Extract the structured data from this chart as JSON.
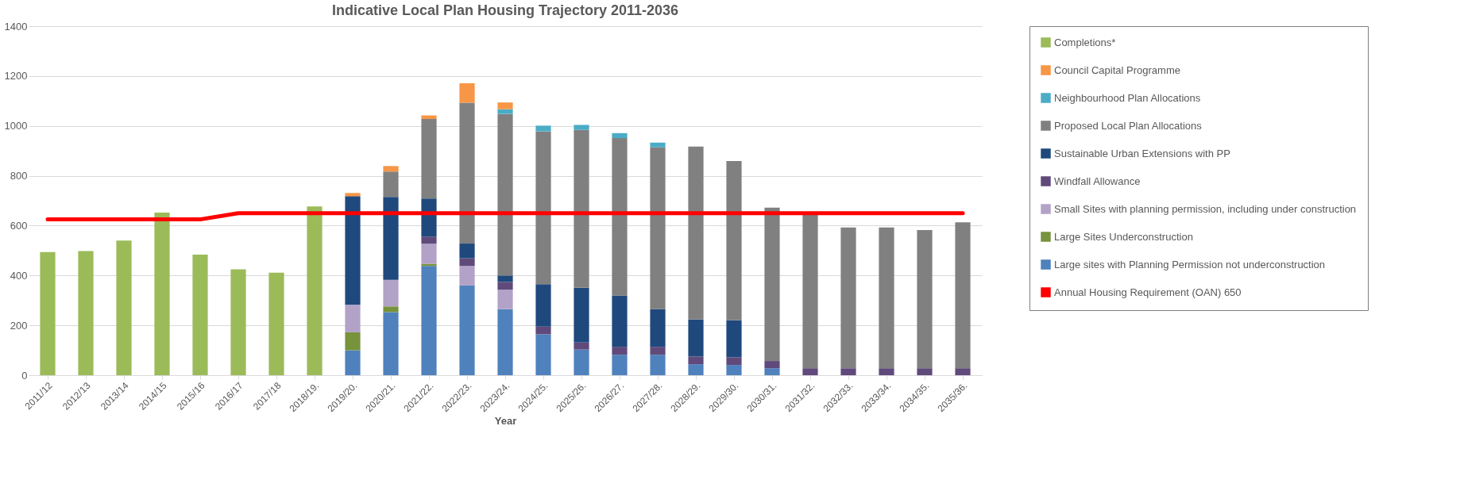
{
  "chart_data": {
    "type": "bar",
    "title": "Indicative Local Plan Housing Trajectory 2011-2036",
    "xlabel": "Year",
    "stacked": true,
    "categories": [
      "2011/12",
      "2012/13",
      "2013/14",
      "2014/15",
      "2015/16",
      "2016/17",
      "2017/18",
      "2018/19.",
      "2019/20.",
      "2020/21.",
      "2021/22.",
      "2022/23.",
      "2023/24.",
      "2024/25.",
      "2025/26.",
      "2026/27.",
      "2027/28.",
      "2028/29.",
      "2029/30.",
      "2030/31.",
      "2031/32.",
      "2032/33.",
      "2033/34.",
      "2034/35.",
      "2035/36."
    ],
    "series": [
      {
        "name": "Completions*",
        "color": "#9bbb59",
        "values": [
          494,
          498,
          540,
          652,
          484,
          425,
          411,
          677,
          null,
          null,
          null,
          null,
          null,
          null,
          null,
          null,
          null,
          null,
          null,
          null,
          null,
          null,
          null,
          null,
          null
        ]
      },
      {
        "name": "Large sites with Planning Permission not underconstruction",
        "color": "#4f81bd",
        "values": [
          null,
          null,
          null,
          null,
          null,
          null,
          null,
          null,
          100,
          253,
          438,
          360,
          265,
          164,
          103,
          82,
          82,
          44,
          41,
          28,
          null,
          null,
          null,
          null,
          null
        ]
      },
      {
        "name": "Large Sites Underconstruction",
        "color": "#77933c",
        "values": [
          null,
          null,
          null,
          null,
          null,
          null,
          null,
          null,
          72,
          23,
          9,
          null,
          null,
          null,
          null,
          null,
          null,
          null,
          null,
          null,
          null,
          null,
          null,
          null,
          null
        ]
      },
      {
        "name": "Small Sites with planning permission, including under construction",
        "color": "#b3a2c7",
        "values": [
          null,
          null,
          null,
          null,
          null,
          null,
          null,
          null,
          110,
          107,
          80,
          78,
          78,
          null,
          null,
          null,
          null,
          null,
          null,
          null,
          null,
          null,
          null,
          null,
          null
        ]
      },
      {
        "name": "Windfall Allowance",
        "color": "#604a7b",
        "values": [
          null,
          null,
          null,
          null,
          null,
          null,
          null,
          null,
          null,
          null,
          29,
          31,
          31,
          31,
          28,
          32,
          32,
          31,
          31,
          29,
          28,
          28,
          28,
          28,
          28
        ]
      },
      {
        "name": "Sustainable Urban Extensions with PP",
        "color": "#1f497d",
        "values": [
          null,
          null,
          null,
          null,
          null,
          null,
          null,
          null,
          436,
          332,
          153,
          59,
          26,
          170,
          220,
          206,
          151,
          149,
          149,
          null,
          null,
          null,
          null,
          null,
          null
        ]
      },
      {
        "name": "Proposed Local Plan Allocations",
        "color": "#808080",
        "values": [
          null,
          null,
          null,
          null,
          null,
          null,
          null,
          null,
          null,
          102,
          319,
          565,
          648,
          613,
          633,
          631,
          649,
          693,
          638,
          615,
          617,
          565,
          565,
          554,
          585
        ]
      },
      {
        "name": "Neighbourhood Plan Allocations",
        "color": "#4bacc6",
        "values": [
          null,
          null,
          null,
          null,
          null,
          null,
          null,
          null,
          null,
          null,
          null,
          null,
          19,
          23,
          20,
          20,
          19,
          null,
          null,
          null,
          null,
          null,
          null,
          null,
          null
        ]
      },
      {
        "name": "Council Capital Programme",
        "color": "#f79646",
        "values": [
          null,
          null,
          null,
          null,
          null,
          null,
          null,
          null,
          13,
          22,
          14,
          78,
          27,
          null,
          null,
          null,
          null,
          null,
          null,
          null,
          null,
          null,
          null,
          null,
          null
        ]
      },
      {
        "name": "Annual Housing Requirement (OAN) 650",
        "type": "line",
        "color": "#ff0000",
        "values": [
          625,
          625,
          625,
          625,
          625,
          650,
          650,
          650,
          650,
          650,
          650,
          650,
          650,
          650,
          650,
          650,
          650,
          650,
          650,
          650,
          650,
          650,
          650,
          650,
          650
        ]
      }
    ],
    "ylim": [
      0,
      1400
    ],
    "yticks": [
      0,
      200,
      400,
      600,
      800,
      1000,
      1200,
      1400
    ],
    "grid": "y",
    "legend": "right"
  }
}
